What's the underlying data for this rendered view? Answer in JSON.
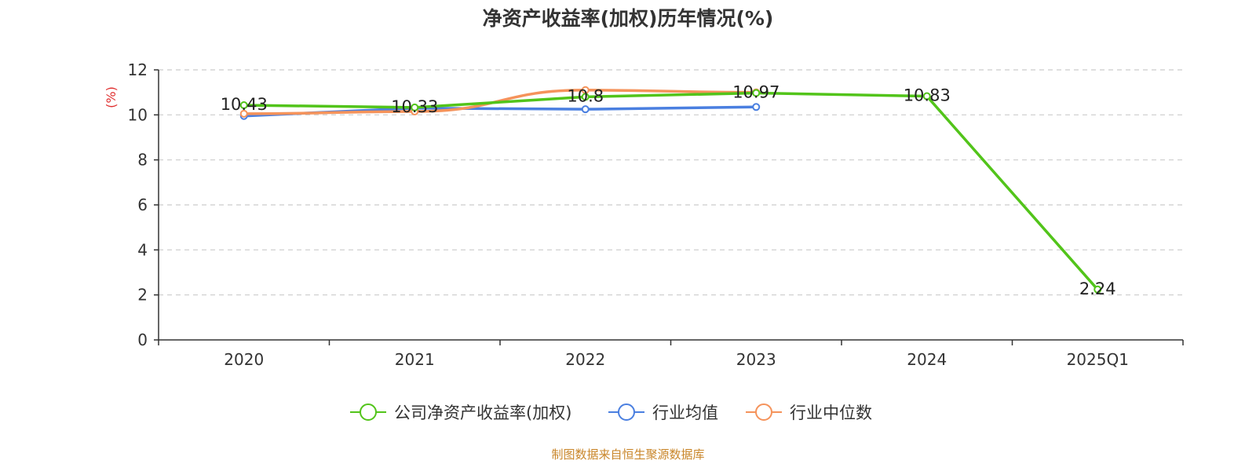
{
  "chart_data": {
    "type": "line",
    "title": "净资产收益率(加权)历年情况(%)",
    "ylabel": "(%)",
    "xlabel": "",
    "categories": [
      "2020",
      "2021",
      "2022",
      "2023",
      "2024",
      "2025Q1"
    ],
    "yticks": [
      "0",
      "2",
      "4",
      "6",
      "8",
      "10",
      "12"
    ],
    "ylim": [
      0,
      12
    ],
    "grid": true,
    "legend_position": "bottom-center",
    "series": [
      {
        "name": "公司净资产收益率(加权)",
        "color": "#52c41a",
        "values": [
          10.43,
          10.33,
          10.8,
          10.97,
          10.83,
          2.24
        ],
        "labels": [
          "10.43",
          "10.33",
          "10.8",
          "10.97",
          "10.83",
          "2.24"
        ]
      },
      {
        "name": "行业均值",
        "color": "#4a7fe0",
        "values": [
          9.95,
          10.3,
          10.25,
          10.35,
          null,
          null
        ]
      },
      {
        "name": "行业中位数",
        "color": "#f5935b",
        "values": [
          10.05,
          10.15,
          11.1,
          11.0,
          null,
          null
        ]
      }
    ],
    "source": "制图数据来自恒生聚源数据库",
    "source_color": "#c9862a",
    "ylabel_color": "#e03030"
  }
}
